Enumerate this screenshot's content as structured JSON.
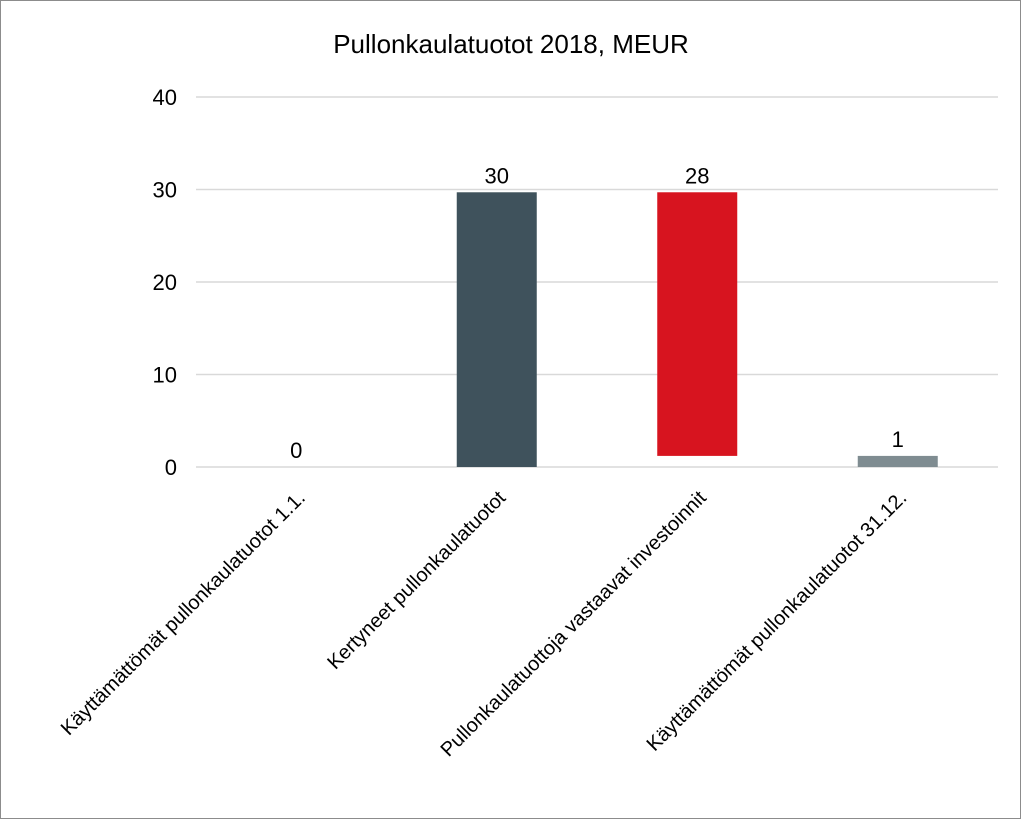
{
  "chart_data": {
    "type": "bar",
    "subtype": "waterfall",
    "title": "Pullonkaulatuotot 2018, MEUR",
    "xlabel": "",
    "ylabel": "",
    "ylim": [
      0,
      40
    ],
    "yticks": [
      0,
      10,
      20,
      30,
      40
    ],
    "grid": true,
    "legend": "none",
    "categories": [
      "Käyttämättömät pullonkaulatuotot 1.1.",
      "Kertyneet pullonkaulatuotot",
      "Pullonkaulatuottoja vastaavat investoinnit",
      "Käyttämättömät pullonkaulatuotot 31.12."
    ],
    "bars": [
      {
        "start": 0,
        "end": 0,
        "label": "0",
        "color": "#7f8c91"
      },
      {
        "start": 0,
        "end": 29.7,
        "label": "30",
        "color": "#3f525c"
      },
      {
        "start": 29.7,
        "end": 1.2,
        "label": "28",
        "color": "#d7141f"
      },
      {
        "start": 0,
        "end": 1.2,
        "label": "1",
        "color": "#7f8c91"
      }
    ]
  }
}
